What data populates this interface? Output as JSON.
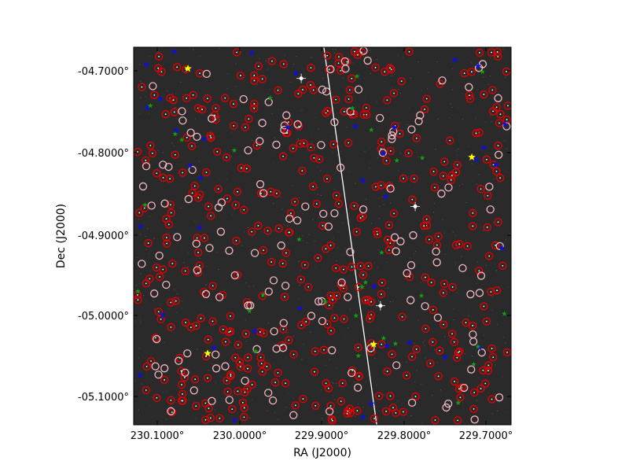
{
  "figure": {
    "xlabel": "RA (J2000)",
    "ylabel": "Dec (J2000)",
    "x_ticks": [
      "230.1000°",
      "230.0000°",
      "229.9000°",
      "229.8000°",
      "229.7000°"
    ],
    "y_ticks": [
      "-04.7000°",
      "-04.8000°",
      "-04.9000°",
      "-05.0000°",
      "-05.1000°"
    ]
  },
  "chart_data": {
    "type": "scatter",
    "xlabel": "RA (J2000)",
    "ylabel": "Dec (J2000)",
    "x_range": [
      230.17,
      229.67
    ],
    "y_range": [
      -5.13,
      -4.67
    ],
    "x_reversed": true,
    "background": "#2a2a2a",
    "marker_colors": {
      "catalog_red": "#e00000",
      "catalog_pink": "#f4b8c0",
      "blue": "#1010d0",
      "green": "#10a010",
      "yellow": "#ffff00"
    },
    "streak_line": {
      "start": {
        "ra": 229.918,
        "dec": -4.67
      },
      "end": {
        "ra": 229.848,
        "dec": -5.13
      },
      "color": "#ffffff"
    },
    "yellow_stars": [
      {
        "ra": 230.098,
        "dec": -4.696
      },
      {
        "ra": 229.722,
        "dec": -4.804
      },
      {
        "ra": 230.072,
        "dec": -5.043
      },
      {
        "ra": 229.852,
        "dec": -5.032
      }
    ],
    "bright_stars": [
      {
        "ra": 229.948,
        "dec": -4.708
      },
      {
        "ra": 229.843,
        "dec": -4.985
      },
      {
        "ra": 229.797,
        "dec": -4.864
      }
    ]
  }
}
